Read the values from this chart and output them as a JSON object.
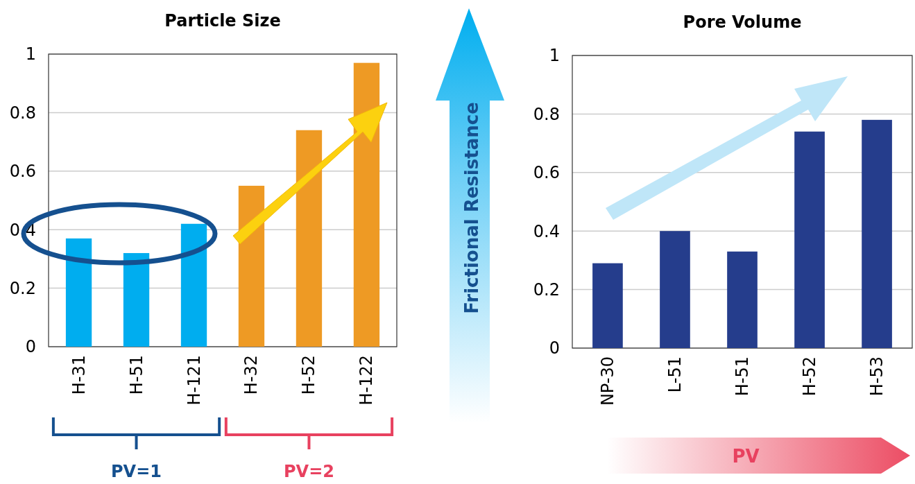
{
  "chart_data": [
    {
      "type": "bar",
      "title": "Particle Size",
      "categories": [
        "H-31",
        "H-51",
        "H-121",
        "H-32",
        "H-52",
        "H-122"
      ],
      "values": [
        0.37,
        0.32,
        0.42,
        0.55,
        0.74,
        0.97
      ],
      "colors": [
        "#00adef",
        "#00adef",
        "#00adef",
        "#ee9a24",
        "#ee9a24",
        "#ee9a24"
      ],
      "ylim": [
        0,
        1
      ],
      "yticks": [
        0,
        0.2,
        0.4,
        0.6,
        0.8,
        1
      ],
      "grid": "y",
      "annotations": [
        "PV=1",
        "PV=2",
        "Frictional Resistance"
      ]
    },
    {
      "type": "bar",
      "title": "Pore Volume",
      "categories": [
        "NP-30",
        "L-51",
        "H-51",
        "H-52",
        "H-53"
      ],
      "values": [
        0.29,
        0.4,
        0.33,
        0.74,
        0.78
      ],
      "color": "#253d8c",
      "ylim": [
        0,
        1
      ],
      "yticks": [
        0,
        0.2,
        0.4,
        0.6,
        0.8,
        1
      ],
      "grid": "y",
      "annotations": [
        "PV"
      ]
    }
  ]
}
